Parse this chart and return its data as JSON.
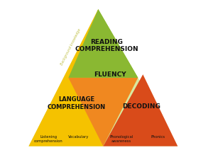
{
  "bg_color": "#ffffff",
  "color_light_yg": "#d9e8a0",
  "color_green": "#8ab832",
  "color_yellow": "#f5c200",
  "color_orange": "#f08820",
  "color_red_orange": "#d94b1a",
  "title": "READING\nCOMPREHENSION",
  "fluency": "FLUENCY",
  "lang_comp": "LANGUAGE\nCOMPREHENSION",
  "decoding": "DECODING",
  "listening": "Listening\ncomprehension",
  "vocabulary": "Vocabulary",
  "phonological": "Phonological\nawareness",
  "phonics": "Phonics",
  "diagonal_label": "Background knowledge"
}
